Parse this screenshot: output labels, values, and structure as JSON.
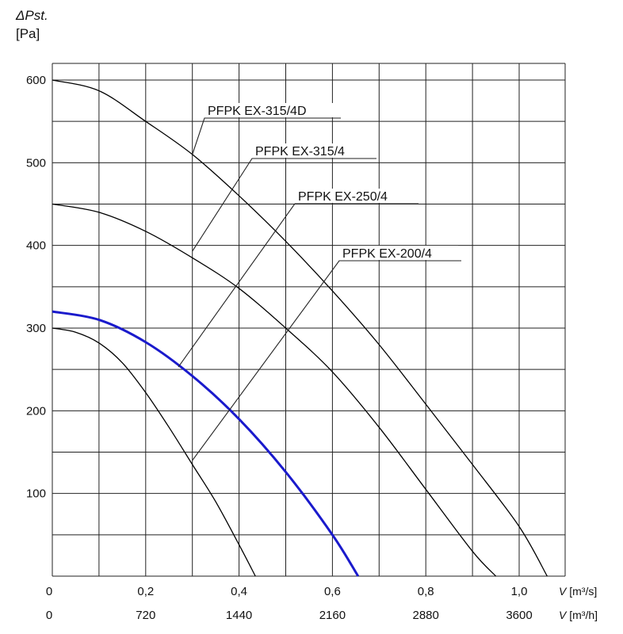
{
  "chart_data": {
    "type": "line",
    "ylabel_symbol": "ΔPst.",
    "ylabel_unit": "[Pa]",
    "ylim": [
      0,
      600
    ],
    "yticks": [
      "100",
      "200",
      "300",
      "400",
      "500",
      "600"
    ],
    "xlim": [
      0,
      1.1
    ],
    "xticks_flow_s": [
      "0",
      "0,2",
      "0,4",
      "0,6",
      "0,8",
      "1,0"
    ],
    "xticks_flow_h": [
      "0",
      "720",
      "1440",
      "2160",
      "2880",
      "3600"
    ],
    "x_unit_s": "[m³/s]",
    "x_unit_h": "[m³/h]",
    "x_symbol": "V",
    "grid": true,
    "series": [
      {
        "name": "PFPK EX-315/4D",
        "color": "#000000",
        "x": [
          0,
          0.1,
          0.2,
          0.3,
          0.4,
          0.5,
          0.6,
          0.7,
          0.8,
          0.9,
          1.0,
          1.06
        ],
        "y": [
          600,
          587,
          550,
          510,
          460,
          405,
          345,
          280,
          208,
          135,
          60,
          0
        ]
      },
      {
        "name": "PFPK EX-315/4",
        "color": "#000000",
        "x": [
          0,
          0.1,
          0.2,
          0.3,
          0.4,
          0.5,
          0.6,
          0.7,
          0.8,
          0.9,
          0.95
        ],
        "y": [
          450,
          440,
          417,
          385,
          348,
          300,
          247,
          180,
          105,
          30,
          0
        ]
      },
      {
        "name": "PFPK EX-250/4",
        "color": "#1a1acc",
        "x": [
          0,
          0.1,
          0.2,
          0.3,
          0.4,
          0.5,
          0.6,
          0.655
        ],
        "y": [
          320,
          310,
          283,
          242,
          190,
          126,
          50,
          0
        ]
      },
      {
        "name": "PFPK EX-200/4",
        "color": "#000000",
        "x": [
          0,
          0.05,
          0.1,
          0.15,
          0.2,
          0.25,
          0.3,
          0.35,
          0.4,
          0.435
        ],
        "y": [
          300,
          295,
          282,
          258,
          222,
          180,
          135,
          90,
          38,
          0
        ]
      }
    ],
    "annotations": [
      {
        "label": "PFPK EX-315/4D",
        "series": 0,
        "point": [
          0.3,
          510
        ]
      },
      {
        "label": "PFPK EX-315/4",
        "series": 1,
        "point": [
          0.3,
          393
        ]
      },
      {
        "label": "PFPK EX-250/4",
        "series": 2,
        "point": [
          0.27,
          253
        ]
      },
      {
        "label": "PFPK EX-200/4",
        "series": 3,
        "point": [
          0.3,
          140
        ]
      }
    ]
  }
}
